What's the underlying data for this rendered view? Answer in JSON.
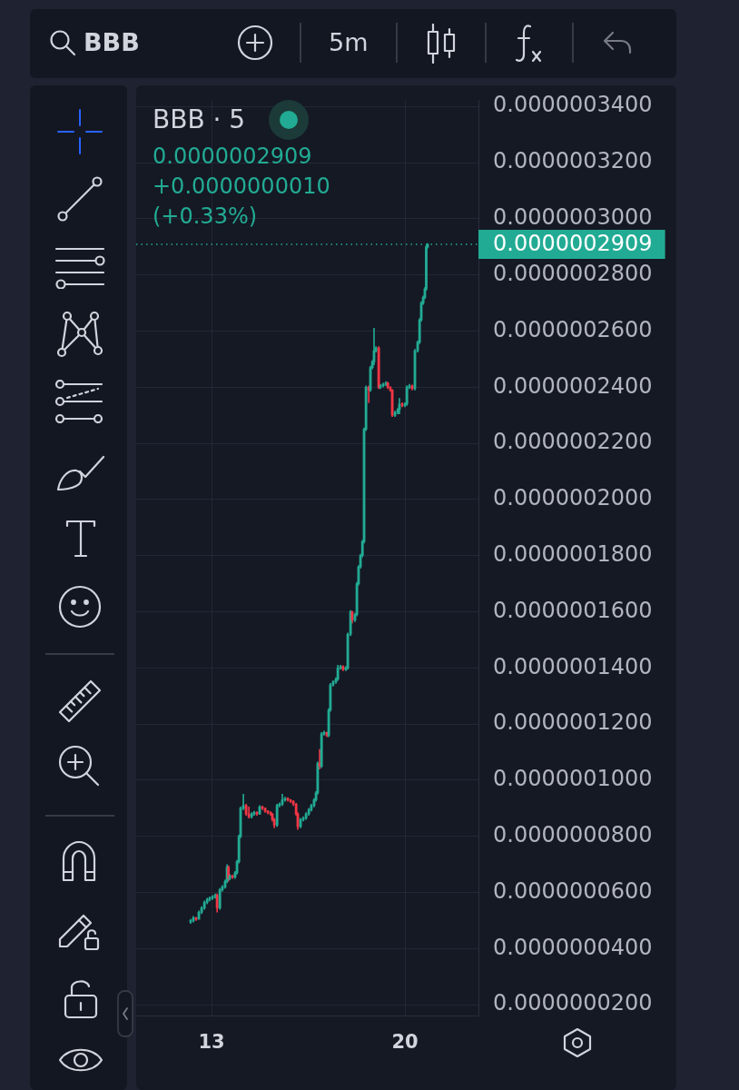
{
  "chart_data": {
    "type": "candlestick",
    "title": "BBB · 5",
    "annotations": [
      "BBB",
      "5m",
      "0.0000002909",
      "+0.0000000010",
      "(+0.33%)"
    ],
    "x": [
      12.24,
      12.34,
      12.44,
      12.54,
      12.64,
      12.74,
      12.84,
      12.93,
      13.03,
      13.13,
      13.2,
      13.3,
      13.39,
      13.49,
      13.56,
      13.61,
      13.66,
      13.76,
      13.85,
      13.92,
      13.99,
      14.05,
      14.15,
      14.25,
      14.35,
      14.45,
      14.54,
      14.64,
      14.74,
      14.84,
      14.94,
      15.04,
      15.14,
      15.2,
      15.27,
      15.37,
      15.46,
      15.56,
      15.66,
      15.76,
      15.86,
      15.96,
      16.06,
      16.12,
      16.22,
      16.32,
      16.42,
      16.52,
      16.61,
      16.71,
      16.78,
      16.84,
      16.91,
      16.98,
      17.07,
      17.17,
      17.24,
      17.3,
      17.4,
      17.5,
      17.57,
      17.67,
      17.76,
      17.86,
      17.93,
      18.03,
      18.09,
      18.19,
      18.26,
      18.32,
      18.39,
      18.46,
      18.52,
      18.59,
      18.69,
      18.75,
      18.82,
      18.88,
      18.95,
      19.05,
      19.11,
      19.21,
      19.31,
      19.38,
      19.47,
      19.54,
      19.64,
      19.74,
      19.8,
      19.9,
      20.0,
      20.07,
      20.16,
      20.26,
      20.36,
      20.46,
      20.53,
      20.59,
      20.66,
      20.72,
      20.77,
      20.82
    ],
    "ohlc": [
      [
        4.95e-08,
        5.05e-08,
        4.9e-08,
        5e-08
      ],
      [
        5e-08,
        5.15e-08,
        4.95e-08,
        5.1e-08
      ],
      [
        5.1e-08,
        5.12e-08,
        5e-08,
        5.05e-08
      ],
      [
        5.05e-08,
        5.35e-08,
        5.05e-08,
        5.3e-08
      ],
      [
        5.3e-08,
        5.5e-08,
        5.25e-08,
        5.45e-08
      ],
      [
        5.45e-08,
        5.7e-08,
        5.4e-08,
        5.65e-08
      ],
      [
        5.65e-08,
        5.8e-08,
        5.6e-08,
        5.75e-08
      ],
      [
        5.75e-08,
        5.85e-08,
        5.7e-08,
        5.8e-08
      ],
      [
        5.8e-08,
        5.9e-08,
        5.75e-08,
        5.85e-08
      ],
      [
        5.85e-08,
        5.95e-08,
        5.8e-08,
        5.9e-08
      ],
      [
        5.9e-08,
        5.95e-08,
        5.3e-08,
        5.45e-08
      ],
      [
        5.45e-08,
        6.15e-08,
        5.4e-08,
        6.1e-08
      ],
      [
        6.1e-08,
        6.25e-08,
        6.05e-08,
        6.2e-08
      ],
      [
        6.2e-08,
        6.45e-08,
        6.15e-08,
        6.4e-08
      ],
      [
        6.4e-08,
        7e-08,
        6.35e-08,
        6.9e-08
      ],
      [
        6.9e-08,
        6.95e-08,
        6.4e-08,
        6.5e-08
      ],
      [
        6.5e-08,
        6.65e-08,
        6.45e-08,
        6.6e-08
      ],
      [
        6.6e-08,
        6.62e-08,
        6.5e-08,
        6.55e-08
      ],
      [
        6.55e-08,
        6.75e-08,
        6.5e-08,
        6.7e-08
      ],
      [
        6.7e-08,
        7.15e-08,
        6.65e-08,
        7.1e-08
      ],
      [
        7.1e-08,
        8.05e-08,
        7.05e-08,
        8e-08
      ],
      [
        8e-08,
        9.05e-08,
        7.95e-08,
        9e-08
      ],
      [
        9e-08,
        9.5e-08,
        8.95e-08,
        9.1e-08
      ],
      [
        9.1e-08,
        9.15e-08,
        8.75e-08,
        8.8e-08
      ],
      [
        8.8e-08,
        9.05e-08,
        8.65e-08,
        8.7e-08
      ],
      [
        8.7e-08,
        8.85e-08,
        8.65e-08,
        8.8e-08
      ],
      [
        8.8e-08,
        8.9e-08,
        8.75e-08,
        8.85e-08
      ],
      [
        8.85e-08,
        8.88e-08,
        8.75e-08,
        8.8e-08
      ],
      [
        8.8e-08,
        9.1e-08,
        8.78e-08,
        9.05e-08
      ],
      [
        9.05e-08,
        9.08e-08,
        8.95e-08,
        9e-08
      ],
      [
        9e-08,
        9.02e-08,
        8.85e-08,
        8.9e-08
      ],
      [
        8.9e-08,
        8.92e-08,
        8.8e-08,
        8.85e-08
      ],
      [
        8.85e-08,
        8.88e-08,
        8.75e-08,
        8.8e-08
      ],
      [
        8.8e-08,
        8.82e-08,
        8.55e-08,
        8.6e-08
      ],
      [
        8.6e-08,
        8.65e-08,
        8.3e-08,
        8.4e-08
      ],
      [
        8.4e-08,
        9.15e-08,
        8.35e-08,
        9.1e-08
      ],
      [
        9.1e-08,
        9.2e-08,
        9.05e-08,
        9.15e-08
      ],
      [
        9.15e-08,
        9.5e-08,
        9.1e-08,
        9.3e-08
      ],
      [
        9.3e-08,
        9.4e-08,
        9.25e-08,
        9.35e-08
      ],
      [
        9.35e-08,
        9.38e-08,
        9.25e-08,
        9.3e-08
      ],
      [
        9.3e-08,
        9.32e-08,
        9.2e-08,
        9.25e-08
      ],
      [
        9.25e-08,
        9.28e-08,
        9.1e-08,
        9.15e-08
      ],
      [
        9.15e-08,
        9.18e-08,
        8.75e-08,
        8.8e-08
      ],
      [
        8.8e-08,
        8.85e-08,
        8.25e-08,
        8.35e-08
      ],
      [
        8.35e-08,
        8.65e-08,
        8.3e-08,
        8.6e-08
      ],
      [
        8.6e-08,
        8.7e-08,
        8.55e-08,
        8.65e-08
      ],
      [
        8.65e-08,
        8.85e-08,
        8.6e-08,
        8.8e-08
      ],
      [
        8.8e-08,
        9e-08,
        8.75e-08,
        8.95e-08
      ],
      [
        8.95e-08,
        9.15e-08,
        8.9e-08,
        9.1e-08
      ],
      [
        9.1e-08,
        9.35e-08,
        9.05e-08,
        9.3e-08
      ],
      [
        9.3e-08,
        9.6e-08,
        9.25e-08,
        9.55e-08
      ],
      [
        9.55e-08,
        1.065e-07,
        9.5e-08,
        1.06e-07
      ],
      [
        1.06e-07,
        1.11e-07,
        1.04e-07,
        1.05e-07
      ],
      [
        1.05e-07,
        1.17e-07,
        1.045e-07,
        1.165e-07
      ],
      [
        1.165e-07,
        1.175e-07,
        1.16e-07,
        1.17e-07
      ],
      [
        1.17e-07,
        1.172e-07,
        1.155e-07,
        1.16e-07
      ],
      [
        1.16e-07,
        1.255e-07,
        1.155e-07,
        1.25e-07
      ],
      [
        1.25e-07,
        1.345e-07,
        1.245e-07,
        1.34e-07
      ],
      [
        1.34e-07,
        1.355e-07,
        1.335e-07,
        1.35e-07
      ],
      [
        1.35e-07,
        1.365e-07,
        1.345e-07,
        1.36e-07
      ],
      [
        1.36e-07,
        1.41e-07,
        1.355e-07,
        1.4e-07
      ],
      [
        1.4e-07,
        1.41e-07,
        1.395e-07,
        1.405e-07
      ],
      [
        1.405e-07,
        1.408e-07,
        1.39e-07,
        1.395e-07
      ],
      [
        1.395e-07,
        1.405e-07,
        1.39e-07,
        1.4e-07
      ],
      [
        1.4e-07,
        1.525e-07,
        1.395e-07,
        1.52e-07
      ],
      [
        1.52e-07,
        1.605e-07,
        1.515e-07,
        1.6e-07
      ],
      [
        1.6e-07,
        1.602e-07,
        1.56e-07,
        1.57e-07
      ],
      [
        1.57e-07,
        1.595e-07,
        1.565e-07,
        1.59e-07
      ],
      [
        1.59e-07,
        1.705e-07,
        1.585e-07,
        1.7e-07
      ],
      [
        1.7e-07,
        1.765e-07,
        1.695e-07,
        1.76e-07
      ],
      [
        1.76e-07,
        1.805e-07,
        1.755e-07,
        1.8e-07
      ],
      [
        1.8e-07,
        1.855e-07,
        1.795e-07,
        1.85e-07
      ],
      [
        1.85e-07,
        2.255e-07,
        1.845e-07,
        2.25e-07
      ],
      [
        2.25e-07,
        2.405e-07,
        2.245e-07,
        2.4e-07
      ],
      [
        2.4e-07,
        2.405e-07,
        2.345e-07,
        2.39e-07
      ],
      [
        2.39e-07,
        2.475e-07,
        2.385e-07,
        2.47e-07
      ],
      [
        2.47e-07,
        2.495e-07,
        2.465e-07,
        2.49e-07
      ],
      [
        2.49e-07,
        2.61e-07,
        2.48e-07,
        2.53e-07
      ],
      [
        2.53e-07,
        2.545e-07,
        2.525e-07,
        2.54e-07
      ],
      [
        2.54e-07,
        2.545e-07,
        2.395e-07,
        2.4e-07
      ],
      [
        2.4e-07,
        2.41e-07,
        2.395e-07,
        2.405e-07
      ],
      [
        2.405e-07,
        2.415e-07,
        2.4e-07,
        2.41e-07
      ],
      [
        2.41e-07,
        2.42e-07,
        2.405e-07,
        2.415e-07
      ],
      [
        2.415e-07,
        2.418e-07,
        2.395e-07,
        2.4e-07
      ],
      [
        2.4e-07,
        2.402e-07,
        2.385e-07,
        2.39e-07
      ],
      [
        2.39e-07,
        2.392e-07,
        2.295e-07,
        2.3e-07
      ],
      [
        2.3e-07,
        2.315e-07,
        2.295e-07,
        2.31e-07
      ],
      [
        2.31e-07,
        2.325e-07,
        2.305e-07,
        2.32e-07
      ],
      [
        2.32e-07,
        2.36e-07,
        2.305e-07,
        2.34e-07
      ],
      [
        2.34e-07,
        2.345e-07,
        2.33e-07,
        2.335e-07
      ],
      [
        2.335e-07,
        2.345e-07,
        2.33e-07,
        2.34e-07
      ],
      [
        2.34e-07,
        2.405e-07,
        2.335e-07,
        2.4e-07
      ],
      [
        2.4e-07,
        2.41e-07,
        2.395e-07,
        2.405e-07
      ],
      [
        2.405e-07,
        2.408e-07,
        2.39e-07,
        2.395e-07
      ],
      [
        2.395e-07,
        2.535e-07,
        2.39e-07,
        2.53e-07
      ],
      [
        2.53e-07,
        2.565e-07,
        2.525e-07,
        2.56e-07
      ],
      [
        2.56e-07,
        2.645e-07,
        2.555e-07,
        2.64e-07
      ],
      [
        2.64e-07,
        2.705e-07,
        2.635e-07,
        2.7e-07
      ],
      [
        2.7e-07,
        2.725e-07,
        2.695e-07,
        2.72e-07
      ],
      [
        2.72e-07,
        2.755e-07,
        2.715e-07,
        2.75e-07
      ],
      [
        2.75e-07,
        2.905e-07,
        2.745e-07,
        2.899e-07
      ],
      [
        2.899e-07,
        2.912e-07,
        2.895e-07,
        2.909e-07
      ]
    ],
    "colors": [
      "#22ab94",
      "#22ab94",
      "#f23645",
      "#22ab94",
      "#22ab94",
      "#22ab94",
      "#22ab94",
      "#22ab94",
      "#22ab94",
      "#22ab94",
      "#f23645",
      "#22ab94",
      "#22ab94",
      "#22ab94",
      "#22ab94",
      "#f23645",
      "#22ab94",
      "#f23645",
      "#22ab94",
      "#22ab94",
      "#22ab94",
      "#22ab94",
      "#22ab94",
      "#f23645",
      "#f23645",
      "#22ab94",
      "#22ab94",
      "#f23645",
      "#22ab94",
      "#f23645",
      "#f23645",
      "#f23645",
      "#f23645",
      "#f23645",
      "#f23645",
      "#22ab94",
      "#22ab94",
      "#22ab94",
      "#22ab94",
      "#f23645",
      "#f23645",
      "#f23645",
      "#f23645",
      "#f23645",
      "#22ab94",
      "#22ab94",
      "#22ab94",
      "#22ab94",
      "#22ab94",
      "#22ab94",
      "#22ab94",
      "#22ab94",
      "#f23645",
      "#22ab94",
      "#22ab94",
      "#f23645",
      "#22ab94",
      "#22ab94",
      "#22ab94",
      "#22ab94",
      "#22ab94",
      "#22ab94",
      "#f23645",
      "#22ab94",
      "#22ab94",
      "#22ab94",
      "#f23645",
      "#22ab94",
      "#22ab94",
      "#22ab94",
      "#22ab94",
      "#22ab94",
      "#22ab94",
      "#22ab94",
      "#f23645",
      "#22ab94",
      "#22ab94",
      "#22ab94",
      "#22ab94",
      "#f23645",
      "#22ab94",
      "#22ab94",
      "#22ab94",
      "#f23645",
      "#f23645",
      "#f23645",
      "#22ab94",
      "#22ab94",
      "#22ab94",
      "#f23645",
      "#22ab94",
      "#22ab94",
      "#22ab94",
      "#f23645",
      "#22ab94",
      "#22ab94",
      "#22ab94",
      "#22ab94",
      "#22ab94",
      "#22ab94",
      "#22ab94",
      "#22ab94"
    ],
    "xlim": [
      10.27,
      22.66
    ],
    "xticks": [
      13,
      20
    ],
    "ylim": [
      1.62e-08,
      3.422e-07
    ],
    "yticks": [
      {
        "value": 2e-08,
        "label": "0.0000000200"
      },
      {
        "value": 4e-08,
        "label": "0.0000000400"
      },
      {
        "value": 6e-08,
        "label": "0.0000000600"
      },
      {
        "value": 8e-08,
        "label": "0.0000000800"
      },
      {
        "value": 1e-07,
        "label": "0.0000001000"
      },
      {
        "value": 1.2e-07,
        "label": "0.0000001200"
      },
      {
        "value": 1.4e-07,
        "label": "0.0000001400"
      },
      {
        "value": 1.6e-07,
        "label": "0.0000001600"
      },
      {
        "value": 1.8e-07,
        "label": "0.0000001800"
      },
      {
        "value": 2e-07,
        "label": "0.0000002000"
      },
      {
        "value": 2.2e-07,
        "label": "0.0000002200"
      },
      {
        "value": 2.4e-07,
        "label": "0.0000002400"
      },
      {
        "value": 2.6e-07,
        "label": "0.0000002600"
      },
      {
        "value": 2.8e-07,
        "label": "0.0000002800"
      },
      {
        "value": 3e-07,
        "label": "0.0000003000"
      },
      {
        "value": 3.2e-07,
        "label": "0.0000003200"
      },
      {
        "value": 3.4e-07,
        "label": "0.0000003400"
      }
    ],
    "grid": true,
    "legend": false,
    "ref_lines": [
      {
        "axis": "y",
        "value": 2.909e-07,
        "label": "0.0000002909",
        "color": "#22ab94",
        "line_style": "dotted"
      }
    ]
  }
}
